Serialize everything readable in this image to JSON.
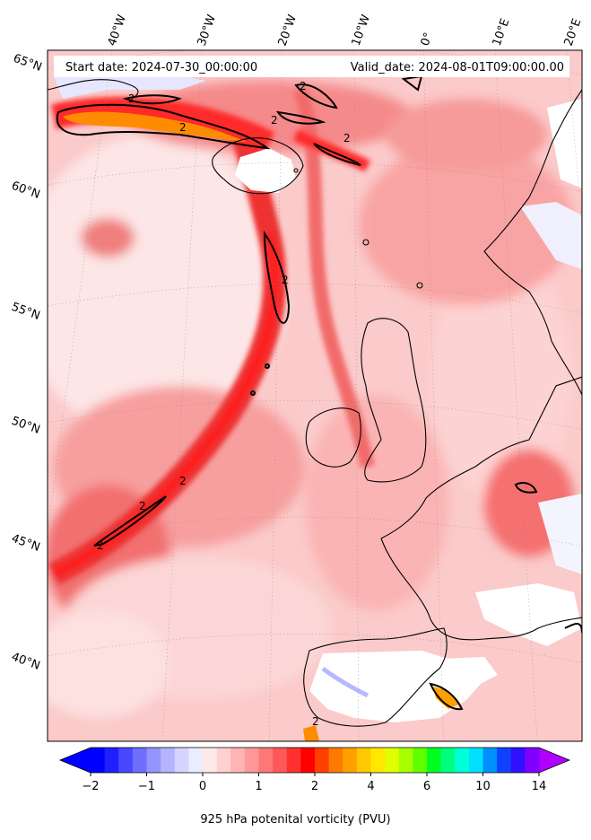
{
  "header": {
    "start_label": "Start date: 2024-07-30_00:00:00",
    "valid_label": "Valid_date: 2024-08-01T09:00:00.00"
  },
  "map": {
    "region": "North Atlantic and Western Europe",
    "lon_labels": [
      "40°W",
      "30°W",
      "20°W",
      "10°W",
      "0°",
      "10°E",
      "20°E"
    ],
    "lat_labels": [
      "65°N",
      "60°N",
      "55°N",
      "50°N",
      "45°N",
      "40°N"
    ],
    "contour_label": "2",
    "field_colors": {
      "land_mask": "#ffffff",
      "pale": "#fde4e4",
      "light": "#fbbcbc",
      "medium": "#f77e7e",
      "strong": "#ee2c2c",
      "peak": "#ff0000",
      "orange": "#ff8c00",
      "negative": "#9b9bff"
    }
  },
  "colorbar": {
    "title": "925 hPa potenital vorticity (PVU)",
    "tick_labels": [
      "−2",
      "−1",
      "0",
      "1",
      "2",
      "4",
      "6",
      "10",
      "14"
    ],
    "colors": [
      "#0000ff",
      "#2020ff",
      "#4848ff",
      "#6e6eff",
      "#9494ff",
      "#b4b4ff",
      "#d4d4ff",
      "#ececff",
      "#ffe8e8",
      "#ffd0d0",
      "#ffb4b4",
      "#ff9898",
      "#ff7878",
      "#ff5858",
      "#ff3030",
      "#ff0000",
      "#ff4000",
      "#ff7a00",
      "#ffa000",
      "#ffc800",
      "#ffe800",
      "#e0ff00",
      "#a8ff00",
      "#60ff00",
      "#00ff20",
      "#00ff80",
      "#00ffd8",
      "#00e0ff",
      "#0090ff",
      "#1040ff",
      "#3010ff",
      "#8000ff"
    ],
    "extend_min_color": "#0000ff",
    "extend_max_color": "#b000ff"
  }
}
